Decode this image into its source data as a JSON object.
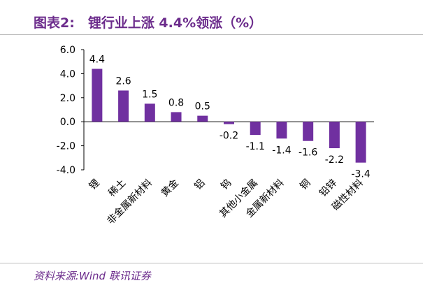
{
  "header": {
    "title": "图表2:　锂行业上涨 4.4%领涨（%）"
  },
  "footer": {
    "source": "资料来源:Wind  联讯证券"
  },
  "chart_data": {
    "type": "bar",
    "categories": [
      "锂",
      "稀土",
      "非金属新材料",
      "黄金",
      "铝",
      "钨",
      "其他小金属",
      "金属新材料",
      "铜",
      "铅锌",
      "磁性材料"
    ],
    "values": [
      4.4,
      2.6,
      1.5,
      0.8,
      0.5,
      -0.2,
      -1.1,
      -1.4,
      -1.6,
      -2.2,
      -3.4
    ],
    "data_labels": [
      "4.4",
      "2.6",
      "1.5",
      "0.8",
      "0.5",
      "-0.2",
      "-1.1",
      "-1.4",
      "-1.6",
      "-2.2",
      "-3.4"
    ],
    "yticks": [
      "6.0",
      "4.0",
      "2.0",
      "0.0",
      "-2.0",
      "-4.0"
    ],
    "ylim": [
      -4,
      6
    ],
    "bar_color": "#7030a0",
    "grid": false,
    "legend": "none"
  }
}
